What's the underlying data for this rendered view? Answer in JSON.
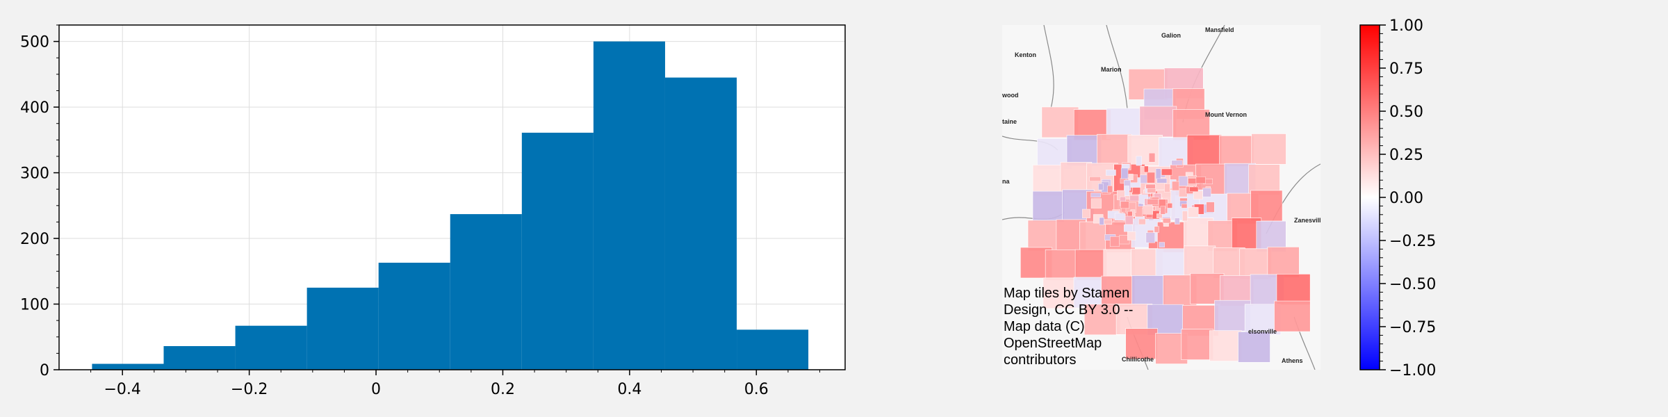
{
  "chart_data": [
    {
      "type": "bar",
      "bin_edges": [
        -0.448,
        -0.335,
        -0.222,
        -0.109,
        0.004,
        0.117,
        0.23,
        0.343,
        0.456,
        0.569,
        0.682
      ],
      "values": [
        9,
        36,
        67,
        125,
        163,
        237,
        361,
        500,
        445,
        61
      ],
      "xticks": [
        -0.4,
        -0.2,
        0,
        0.2,
        0.4,
        0.6
      ],
      "xtick_labels": [
        "−0.4",
        "−0.2",
        "0",
        "0.2",
        "0.4",
        "0.6"
      ],
      "yticks": [
        0,
        100,
        200,
        300,
        400,
        500
      ],
      "ytick_labels": [
        "0",
        "100",
        "200",
        "300",
        "400",
        "500"
      ],
      "xlim": [
        -0.5,
        0.74
      ],
      "ylim": [
        0,
        525
      ],
      "grid": true,
      "bar_color": "#0072b2"
    },
    {
      "type": "map",
      "attribution": "Map tiles by Stamen Design, CC BY 3.0 -- Map data (C) OpenStreetMap contributors",
      "place_labels": [
        "Galion",
        "Mansfield",
        "Kenton",
        "Marion",
        "Mount Vernon",
        "wood",
        "taine",
        "na",
        "Zanesville",
        "elsonville",
        "Chillicothe",
        "Athens"
      ]
    },
    {
      "type": "colorbar",
      "range": [
        -1.0,
        1.0
      ],
      "ticks": [
        1.0,
        0.75,
        0.5,
        0.25,
        0.0,
        -0.25,
        -0.5,
        -0.75,
        -1.0
      ],
      "tick_labels": [
        "1.00",
        "0.75",
        "0.50",
        "0.25",
        "0.00",
        "−0.25",
        "−0.50",
        "−0.75",
        "−1.00"
      ],
      "colors": [
        "#0000ff",
        "#ffffff",
        "#ff0000"
      ]
    }
  ]
}
